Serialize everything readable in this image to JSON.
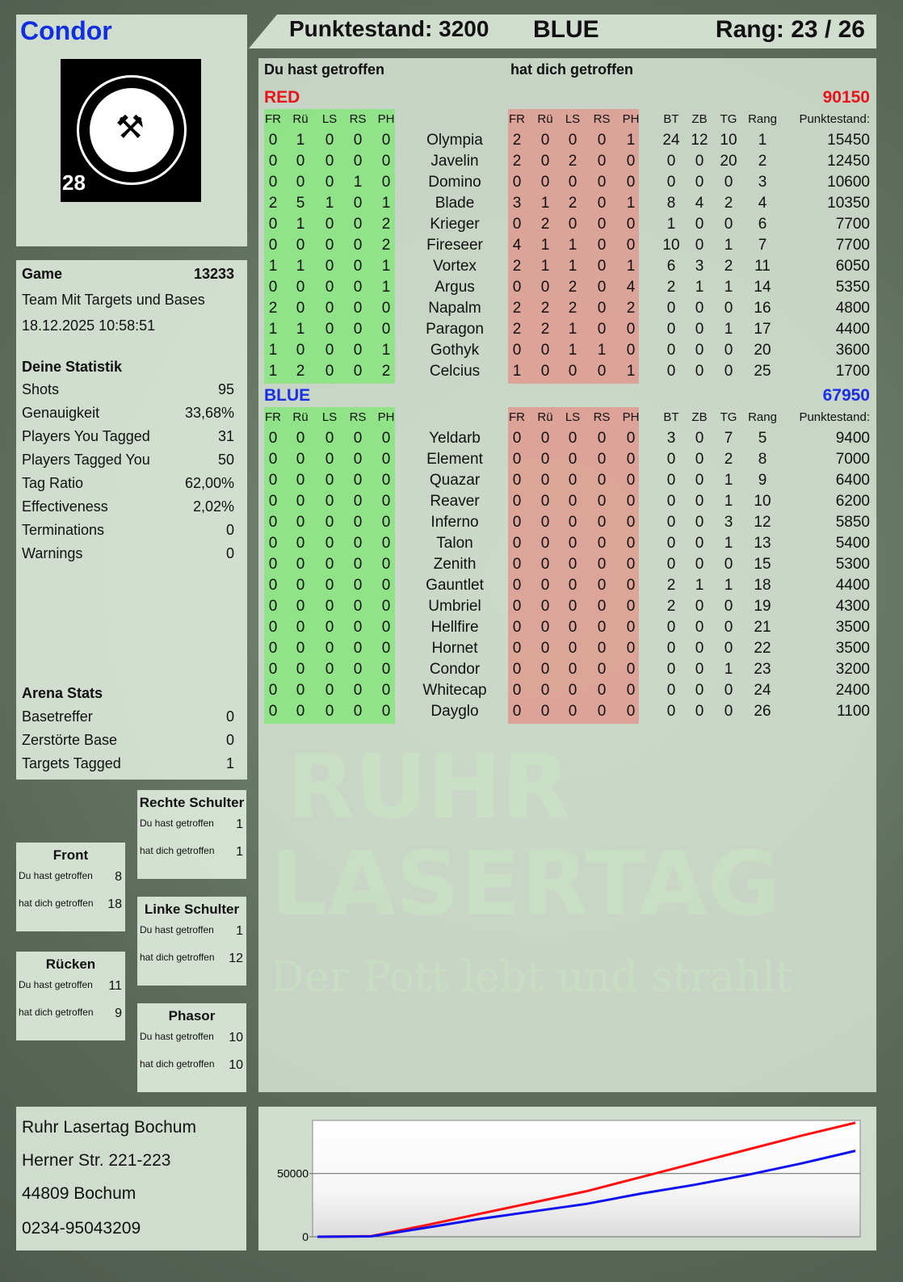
{
  "player": {
    "name": "Condor",
    "logo_text": "RUHR LASERTAG",
    "logo_number": "28"
  },
  "header": {
    "score_label": "Punktestand: 3200",
    "team": "BLUE",
    "rank_label": "Rang: 23 / 26"
  },
  "table_headers": {
    "you_hit": "Du hast getroffen",
    "hit_you": "hat dich getroffen",
    "cols_hit": [
      "FR",
      "Rü",
      "LS",
      "RS",
      "PH"
    ],
    "cols_stats": [
      "BT",
      "ZB",
      "TG",
      "Rang"
    ],
    "score_col": "Punktestand:"
  },
  "teams": [
    {
      "name": "RED",
      "total": "90150",
      "color": "#e8141c",
      "players": [
        [
          "Olympia",
          [
            0,
            1,
            0,
            0,
            0
          ],
          [
            2,
            0,
            0,
            0,
            1
          ],
          [
            24,
            12,
            10,
            1
          ],
          15450
        ],
        [
          "Javelin",
          [
            0,
            0,
            0,
            0,
            0
          ],
          [
            2,
            0,
            2,
            0,
            0
          ],
          [
            0,
            0,
            20,
            2
          ],
          12450
        ],
        [
          "Domino",
          [
            0,
            0,
            0,
            1,
            0
          ],
          [
            0,
            0,
            0,
            0,
            0
          ],
          [
            0,
            0,
            0,
            3
          ],
          10600
        ],
        [
          "Blade",
          [
            2,
            5,
            1,
            0,
            1
          ],
          [
            3,
            1,
            2,
            0,
            1
          ],
          [
            8,
            4,
            2,
            4
          ],
          10350
        ],
        [
          "Krieger",
          [
            0,
            1,
            0,
            0,
            2
          ],
          [
            0,
            2,
            0,
            0,
            0
          ],
          [
            1,
            0,
            0,
            6
          ],
          7700
        ],
        [
          "Fireseer",
          [
            0,
            0,
            0,
            0,
            2
          ],
          [
            4,
            1,
            1,
            0,
            0
          ],
          [
            10,
            0,
            1,
            7
          ],
          7700
        ],
        [
          "Vortex",
          [
            1,
            1,
            0,
            0,
            1
          ],
          [
            2,
            1,
            1,
            0,
            1
          ],
          [
            6,
            3,
            2,
            11
          ],
          6050
        ],
        [
          "Argus",
          [
            0,
            0,
            0,
            0,
            1
          ],
          [
            0,
            0,
            2,
            0,
            4
          ],
          [
            2,
            1,
            1,
            14
          ],
          5350
        ],
        [
          "Napalm",
          [
            2,
            0,
            0,
            0,
            0
          ],
          [
            2,
            2,
            2,
            0,
            2
          ],
          [
            0,
            0,
            0,
            16
          ],
          4800
        ],
        [
          "Paragon",
          [
            1,
            1,
            0,
            0,
            0
          ],
          [
            2,
            2,
            1,
            0,
            0
          ],
          [
            0,
            0,
            1,
            17
          ],
          4400
        ],
        [
          "Gothyk",
          [
            1,
            0,
            0,
            0,
            1
          ],
          [
            0,
            0,
            1,
            1,
            0
          ],
          [
            0,
            0,
            0,
            20
          ],
          3600
        ],
        [
          "Celcius",
          [
            1,
            2,
            0,
            0,
            2
          ],
          [
            1,
            0,
            0,
            0,
            1
          ],
          [
            0,
            0,
            0,
            25
          ],
          1700
        ]
      ]
    },
    {
      "name": "BLUE",
      "total": "67950",
      "color": "#1a2ee8",
      "players": [
        [
          "Yeldarb",
          [
            0,
            0,
            0,
            0,
            0
          ],
          [
            0,
            0,
            0,
            0,
            0
          ],
          [
            3,
            0,
            7,
            5
          ],
          9400
        ],
        [
          "Element",
          [
            0,
            0,
            0,
            0,
            0
          ],
          [
            0,
            0,
            0,
            0,
            0
          ],
          [
            0,
            0,
            2,
            8
          ],
          7000
        ],
        [
          "Quazar",
          [
            0,
            0,
            0,
            0,
            0
          ],
          [
            0,
            0,
            0,
            0,
            0
          ],
          [
            0,
            0,
            1,
            9
          ],
          6400
        ],
        [
          "Reaver",
          [
            0,
            0,
            0,
            0,
            0
          ],
          [
            0,
            0,
            0,
            0,
            0
          ],
          [
            0,
            0,
            1,
            10
          ],
          6200
        ],
        [
          "Inferno",
          [
            0,
            0,
            0,
            0,
            0
          ],
          [
            0,
            0,
            0,
            0,
            0
          ],
          [
            0,
            0,
            3,
            12
          ],
          5850
        ],
        [
          "Talon",
          [
            0,
            0,
            0,
            0,
            0
          ],
          [
            0,
            0,
            0,
            0,
            0
          ],
          [
            0,
            0,
            1,
            13
          ],
          5400
        ],
        [
          "Zenith",
          [
            0,
            0,
            0,
            0,
            0
          ],
          [
            0,
            0,
            0,
            0,
            0
          ],
          [
            0,
            0,
            0,
            15
          ],
          5300
        ],
        [
          "Gauntlet",
          [
            0,
            0,
            0,
            0,
            0
          ],
          [
            0,
            0,
            0,
            0,
            0
          ],
          [
            2,
            1,
            1,
            18
          ],
          4400
        ],
        [
          "Umbriel",
          [
            0,
            0,
            0,
            0,
            0
          ],
          [
            0,
            0,
            0,
            0,
            0
          ],
          [
            2,
            0,
            0,
            19
          ],
          4300
        ],
        [
          "Hellfire",
          [
            0,
            0,
            0,
            0,
            0
          ],
          [
            0,
            0,
            0,
            0,
            0
          ],
          [
            0,
            0,
            0,
            21
          ],
          3500
        ],
        [
          "Hornet",
          [
            0,
            0,
            0,
            0,
            0
          ],
          [
            0,
            0,
            0,
            0,
            0
          ],
          [
            0,
            0,
            0,
            22
          ],
          3500
        ],
        [
          "Condor",
          [
            0,
            0,
            0,
            0,
            0
          ],
          [
            0,
            0,
            0,
            0,
            0
          ],
          [
            0,
            0,
            1,
            23
          ],
          3200
        ],
        [
          "Whitecap",
          [
            0,
            0,
            0,
            0,
            0
          ],
          [
            0,
            0,
            0,
            0,
            0
          ],
          [
            0,
            0,
            0,
            24
          ],
          2400
        ],
        [
          "Dayglo",
          [
            0,
            0,
            0,
            0,
            0
          ],
          [
            0,
            0,
            0,
            0,
            0
          ],
          [
            0,
            0,
            0,
            26
          ],
          1100
        ]
      ]
    }
  ],
  "game": {
    "label": "Game",
    "id": "13233",
    "mode": "Team Mit Targets und Bases",
    "datetime": "18.12.2025 10:58:51"
  },
  "statistik": {
    "title": "Deine Statistik",
    "rows": [
      [
        "Shots",
        "95"
      ],
      [
        "Genauigkeit",
        "33,68%"
      ],
      [
        "Players You Tagged",
        "31"
      ],
      [
        "Players Tagged You",
        "50"
      ],
      [
        "Tag Ratio",
        "62,00%"
      ],
      [
        "Effectiveness",
        "2,02%"
      ],
      [
        "Terminations",
        "0"
      ],
      [
        "Warnings",
        "0"
      ]
    ]
  },
  "arena": {
    "title": "Arena Stats",
    "rows": [
      [
        "Basetreffer",
        "0"
      ],
      [
        "Zerstörte Base",
        "0"
      ],
      [
        "Targets Tagged",
        "1"
      ]
    ]
  },
  "zones": [
    {
      "title": "Rechte Schulter",
      "you_hit_label": "Du hast getroffen",
      "you_hit": "1",
      "hit_you_label": "hat dich getroffen",
      "hit_you": "1"
    },
    {
      "title": "Front",
      "you_hit_label": "Du hast getroffen",
      "you_hit": "8",
      "hit_you_label": "hat dich getroffen",
      "hit_you": "18"
    },
    {
      "title": "Linke Schulter",
      "you_hit_label": "Du hast getroffen",
      "you_hit": "1",
      "hit_you_label": "hat dich getroffen",
      "hit_you": "12"
    },
    {
      "title": "Rücken",
      "you_hit_label": "Du hast getroffen",
      "you_hit": "11",
      "hit_you_label": "hat dich getroffen",
      "hit_you": "9"
    },
    {
      "title": "Phasor",
      "you_hit_label": "Du hast getroffen",
      "you_hit": "10",
      "hit_you_label": "hat dich getroffen",
      "hit_you": "10"
    }
  ],
  "address": {
    "line1": "Ruhr Lasertag Bochum",
    "line2": "Herner Str. 221-223",
    "line3": "44809 Bochum",
    "phone": "0234-95043209"
  },
  "watermark": {
    "line1": "RUHR",
    "line2": "LASERTAG",
    "slogan": "Der Pott lebt und strahlt"
  },
  "chart_data": {
    "type": "line",
    "ylim": [
      0,
      92000
    ],
    "yticks": [
      "0",
      "50000"
    ],
    "grid": true,
    "x": [
      0,
      1,
      2,
      3,
      4,
      5,
      6,
      7,
      8,
      9,
      10
    ],
    "series": [
      {
        "color": "#ff1010",
        "values": [
          0,
          500,
          9000,
          18000,
          27000,
          36000,
          47000,
          58000,
          69000,
          80000,
          90150
        ]
      },
      {
        "color": "#1010ee",
        "values": [
          0,
          300,
          7000,
          14000,
          20000,
          26000,
          34000,
          41000,
          49000,
          58000,
          67950
        ]
      }
    ]
  }
}
